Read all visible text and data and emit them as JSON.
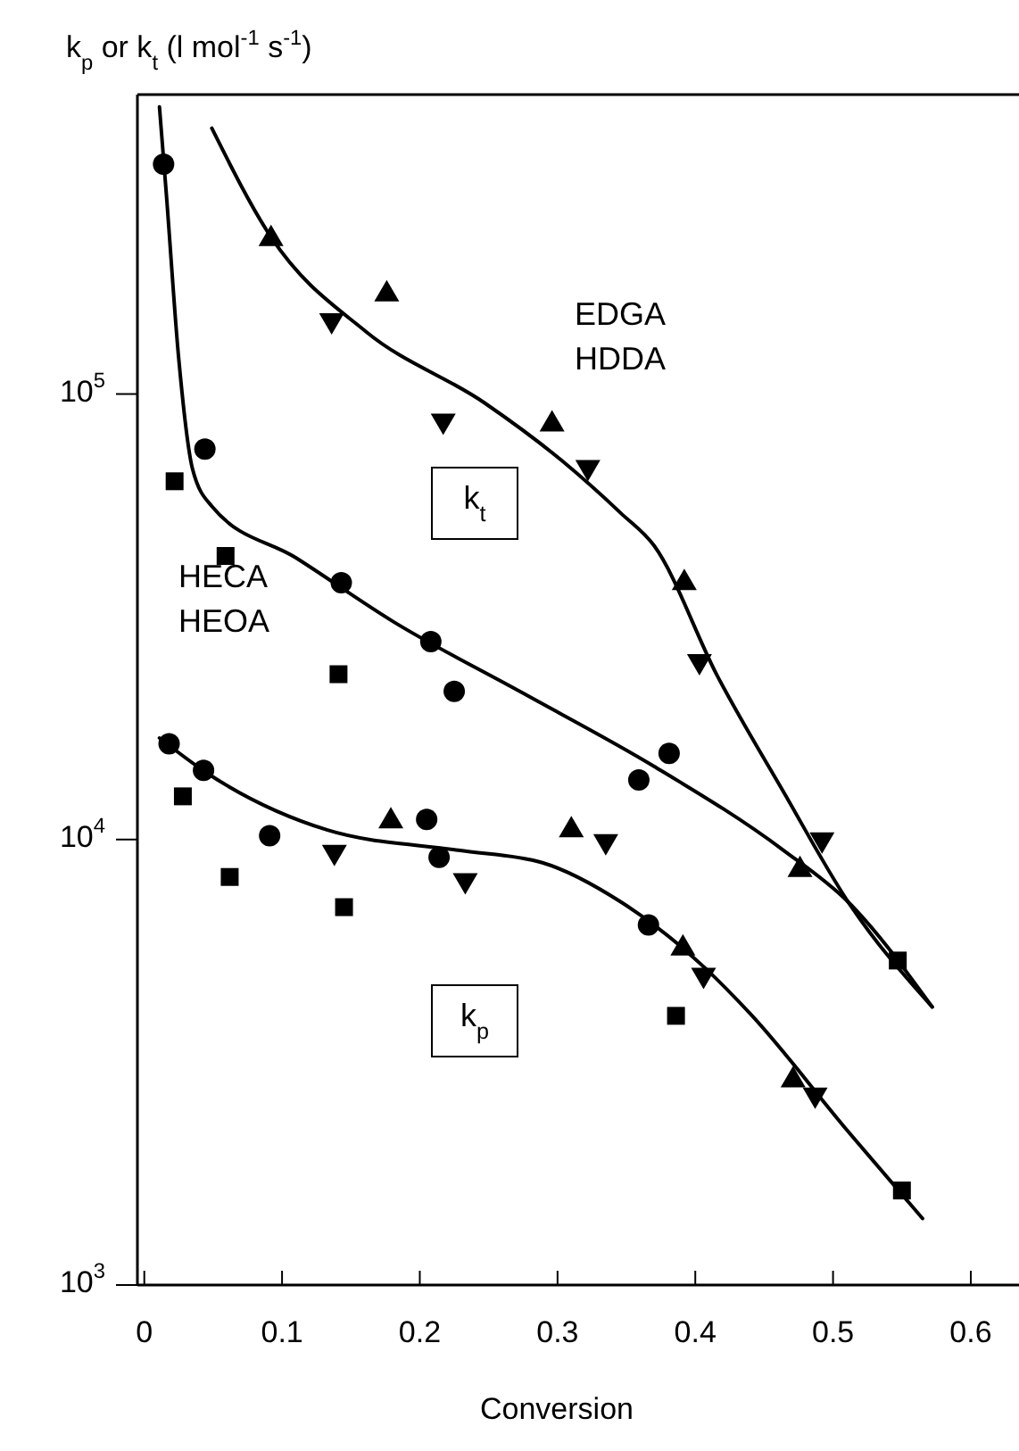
{
  "chart_data": {
    "type": "scatter",
    "xlabel": "Conversion",
    "ylabel": "k$_{p}$ or k$_{t}$  (l mol$^{-1}$ s$^{-1}$)",
    "log": "y",
    "grid": false,
    "xlim": [
      -0.005,
      0.635
    ],
    "xticks": [
      {
        "value": 0,
        "label": "0"
      },
      0.1,
      0.2,
      0.3,
      0.4,
      0.5,
      0.6
    ],
    "ylim": [
      1000,
      470000
    ],
    "yticks": [
      {
        "value": 1000,
        "label": "10$^{3}$"
      },
      {
        "value": 10000,
        "label": "10$^{4}$"
      },
      {
        "value": 100000,
        "label": "10$^{5}$"
      }
    ],
    "annotations": [
      "EDGA\nHDDA",
      "k$_{t}$",
      "HECA\nHEOA",
      "k$_{p}$"
    ],
    "series": [
      {
        "marker": "circle",
        "color": "#000000",
        "x": [
          0.014,
          0.044,
          0.143,
          0.208,
          0.225,
          0.381,
          0.359,
          0.018,
          0.043,
          0.091,
          0.205,
          0.214,
          0.366
        ],
        "values": [
          328000,
          75200,
          37700,
          27800,
          21500,
          15600,
          13600,
          16400,
          14300,
          10200,
          11100,
          9120,
          6430
        ]
      },
      {
        "marker": "square",
        "color": "#000000",
        "x": [
          0.022,
          0.059,
          0.141,
          0.028,
          0.062,
          0.145,
          0.386,
          0.547,
          0.55
        ],
        "values": [
          63700,
          43300,
          23500,
          12500,
          8240,
          7050,
          4020,
          5350,
          1630
        ]
      },
      {
        "marker": "triangle",
        "color": "#000000",
        "x": [
          0.092,
          0.176,
          0.296,
          0.392,
          0.179,
          0.31,
          0.476,
          0.391,
          0.471
        ],
        "values": [
          225000,
          169000,
          86300,
          38000,
          11100,
          10600,
          8630,
          5750,
          2910
        ]
      },
      {
        "marker": "triangle-down",
        "color": "#000000",
        "x": [
          0.136,
          0.217,
          0.322,
          0.403,
          0.492,
          0.138,
          0.335,
          0.233,
          0.406,
          0.487
        ],
        "values": [
          145000,
          86300,
          67900,
          24900,
          9910,
          9290,
          9820,
          8020,
          4920,
          2650
        ]
      },
      {
        "type": "line",
        "marker": "none",
        "color": "#000000",
        "x": [
          0.049,
          0.092,
          0.161,
          0.247,
          0.304,
          0.346,
          0.37,
          0.416,
          0.464,
          0.511,
          0.572
        ],
        "values": [
          395000,
          225000,
          138000,
          95500,
          70500,
          54000,
          45700,
          23300,
          12800,
          7240,
          4210
        ]
      },
      {
        "type": "line",
        "marker": "none",
        "color": "#000000",
        "x": [
          0.011,
          0.016,
          0.025,
          0.035,
          0.049,
          0.11,
          0.181,
          0.275,
          0.37,
          0.464,
          0.511,
          0.572
        ],
        "values": [
          441000,
          281000,
          120000,
          67900,
          56000,
          42900,
          30800,
          21300,
          14600,
          9460,
          7240,
          4210
        ]
      },
      {
        "type": "line",
        "marker": "none",
        "color": "#000000",
        "x": [
          0.011,
          0.044,
          0.133,
          0.228,
          0.289,
          0.346,
          0.407,
          0.44,
          0.511,
          0.565
        ],
        "values": [
          16900,
          14200,
          10500,
          9460,
          8870,
          7240,
          5150,
          4060,
          2210,
          1410
        ]
      }
    ]
  }
}
